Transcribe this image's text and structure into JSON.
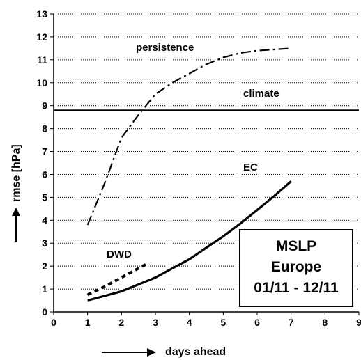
{
  "chart_data": {
    "type": "line",
    "xlabel": "days ahead",
    "ylabel": "rmse [hPa]",
    "xlim": [
      0,
      9
    ],
    "ylim": [
      0,
      13
    ],
    "x_ticks": [
      "0",
      "1",
      "2",
      "3",
      "4",
      "5",
      "6",
      "7",
      "8",
      "9"
    ],
    "y_ticks": [
      "0",
      "1",
      "2",
      "3",
      "4",
      "5",
      "6",
      "7",
      "8",
      "9",
      "10",
      "11",
      "12",
      "13"
    ],
    "grid": "horizontal dotted",
    "series": [
      {
        "name": "persistence",
        "style": "dash-dot",
        "x": [
          1,
          1.5,
          2,
          2.5,
          3,
          3.5,
          4,
          4.5,
          5,
          5.5,
          6,
          6.5,
          7
        ],
        "y": [
          3.8,
          5.6,
          7.6,
          8.6,
          9.5,
          10.0,
          10.4,
          10.8,
          11.1,
          11.3,
          11.4,
          11.45,
          11.5
        ]
      },
      {
        "name": "climate",
        "style": "solid",
        "x": [
          0,
          9
        ],
        "y": [
          8.8,
          8.8
        ]
      },
      {
        "name": "EC",
        "style": "solid-thick",
        "x": [
          1,
          1.5,
          2,
          2.5,
          3,
          3.5,
          4,
          4.5,
          5,
          5.5,
          6,
          6.5,
          7
        ],
        "y": [
          0.5,
          0.7,
          0.9,
          1.2,
          1.5,
          1.9,
          2.3,
          2.8,
          3.3,
          3.85,
          4.45,
          5.05,
          5.7
        ]
      },
      {
        "name": "DWD",
        "style": "dotted-thick",
        "x": [
          1,
          1.5,
          2,
          2.5,
          2.75
        ],
        "y": [
          0.75,
          1.1,
          1.5,
          1.9,
          2.1
        ]
      }
    ],
    "annotation": {
      "lines": [
        "MSLP",
        "Europe",
        "01/11 - 12/11"
      ]
    }
  }
}
